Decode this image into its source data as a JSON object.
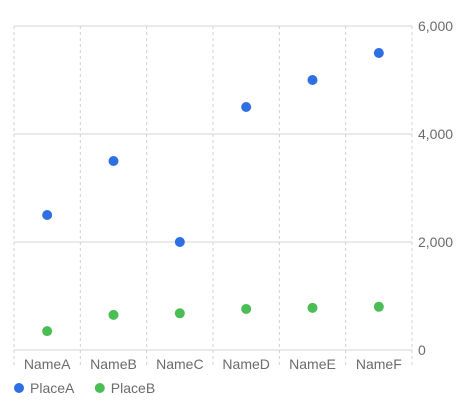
{
  "chart_data": {
    "type": "scatter",
    "title": "",
    "xlabel": "",
    "ylabel": "",
    "categories": [
      "NameA",
      "NameB",
      "NameC",
      "NameD",
      "NameE",
      "NameF"
    ],
    "ylim": [
      0,
      6000
    ],
    "y_ticks": [
      0,
      2000,
      4000,
      6000
    ],
    "y_tick_labels": [
      "0",
      "2,000",
      "4,000",
      "6,000"
    ],
    "y_axis_position": "right",
    "grid": {
      "horizontal": "solid",
      "vertical": "dashed"
    },
    "legend_position": "bottom-left",
    "series": [
      {
        "name": "PlaceA",
        "color": "#2f6fe4",
        "values": [
          2500,
          3500,
          2000,
          4500,
          5000,
          5500
        ]
      },
      {
        "name": "PlaceB",
        "color": "#4bbd55",
        "values": [
          350,
          650,
          680,
          760,
          780,
          800
        ]
      }
    ]
  }
}
